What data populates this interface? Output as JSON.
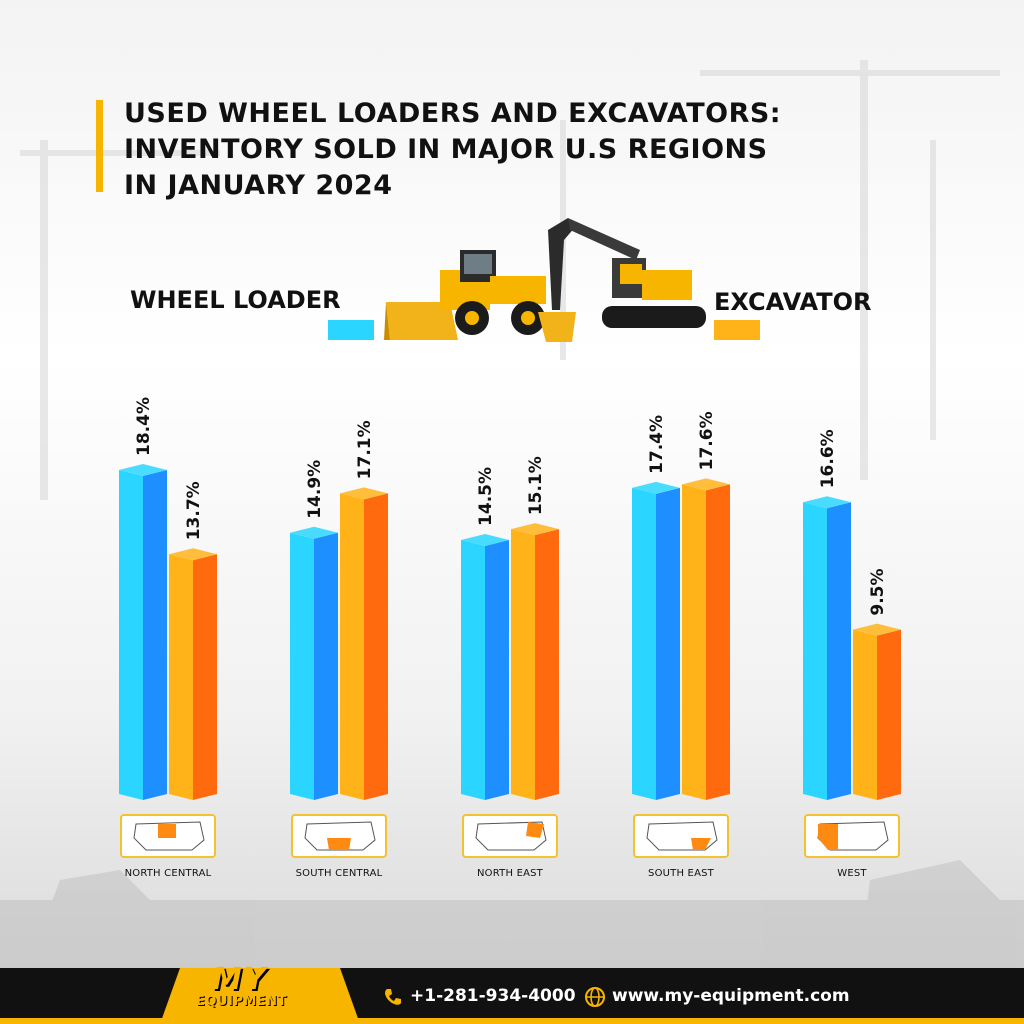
{
  "title": {
    "line1": "USED WHEEL LOADERS AND EXCAVATORS:",
    "line2": "INVENTORY SOLD IN MAJOR U.S REGIONS",
    "line3": "IN JANUARY 2024"
  },
  "legend": {
    "wheel_loader": "WHEEL LOADER",
    "excavator": "EXCAVATOR"
  },
  "colors": {
    "wheel_loader_light": "#2ad6ff",
    "wheel_loader_dark": "#1e8fff",
    "excavator_light": "#ffb319",
    "excavator_dark": "#ff6a0f",
    "accent": "#f7b500"
  },
  "chart_data": {
    "type": "bar",
    "categories": [
      "NORTH CENTRAL",
      "SOUTH CENTRAL",
      "NORTH EAST",
      "SOUTH EAST",
      "WEST"
    ],
    "series": [
      {
        "name": "WHEEL LOADER",
        "values": [
          18.4,
          14.9,
          14.5,
          17.4,
          16.6
        ],
        "labels": [
          "18.4%",
          "14.9%",
          "14.5%",
          "17.4%",
          "16.6%"
        ]
      },
      {
        "name": "EXCAVATOR",
        "values": [
          13.7,
          17.1,
          15.1,
          17.6,
          9.5
        ],
        "labels": [
          "13.7%",
          "17.1%",
          "15.1%",
          "17.6%",
          "9.5%"
        ]
      }
    ],
    "ylim": [
      0,
      18.4
    ]
  },
  "footer": {
    "logo_top": "MY",
    "logo_bottom": "EQUIPMENT",
    "phone": "+1-281-934-4000",
    "website": "www.my-equipment.com",
    "phone_icon": "phone-icon",
    "web_icon": "globe-icon"
  }
}
